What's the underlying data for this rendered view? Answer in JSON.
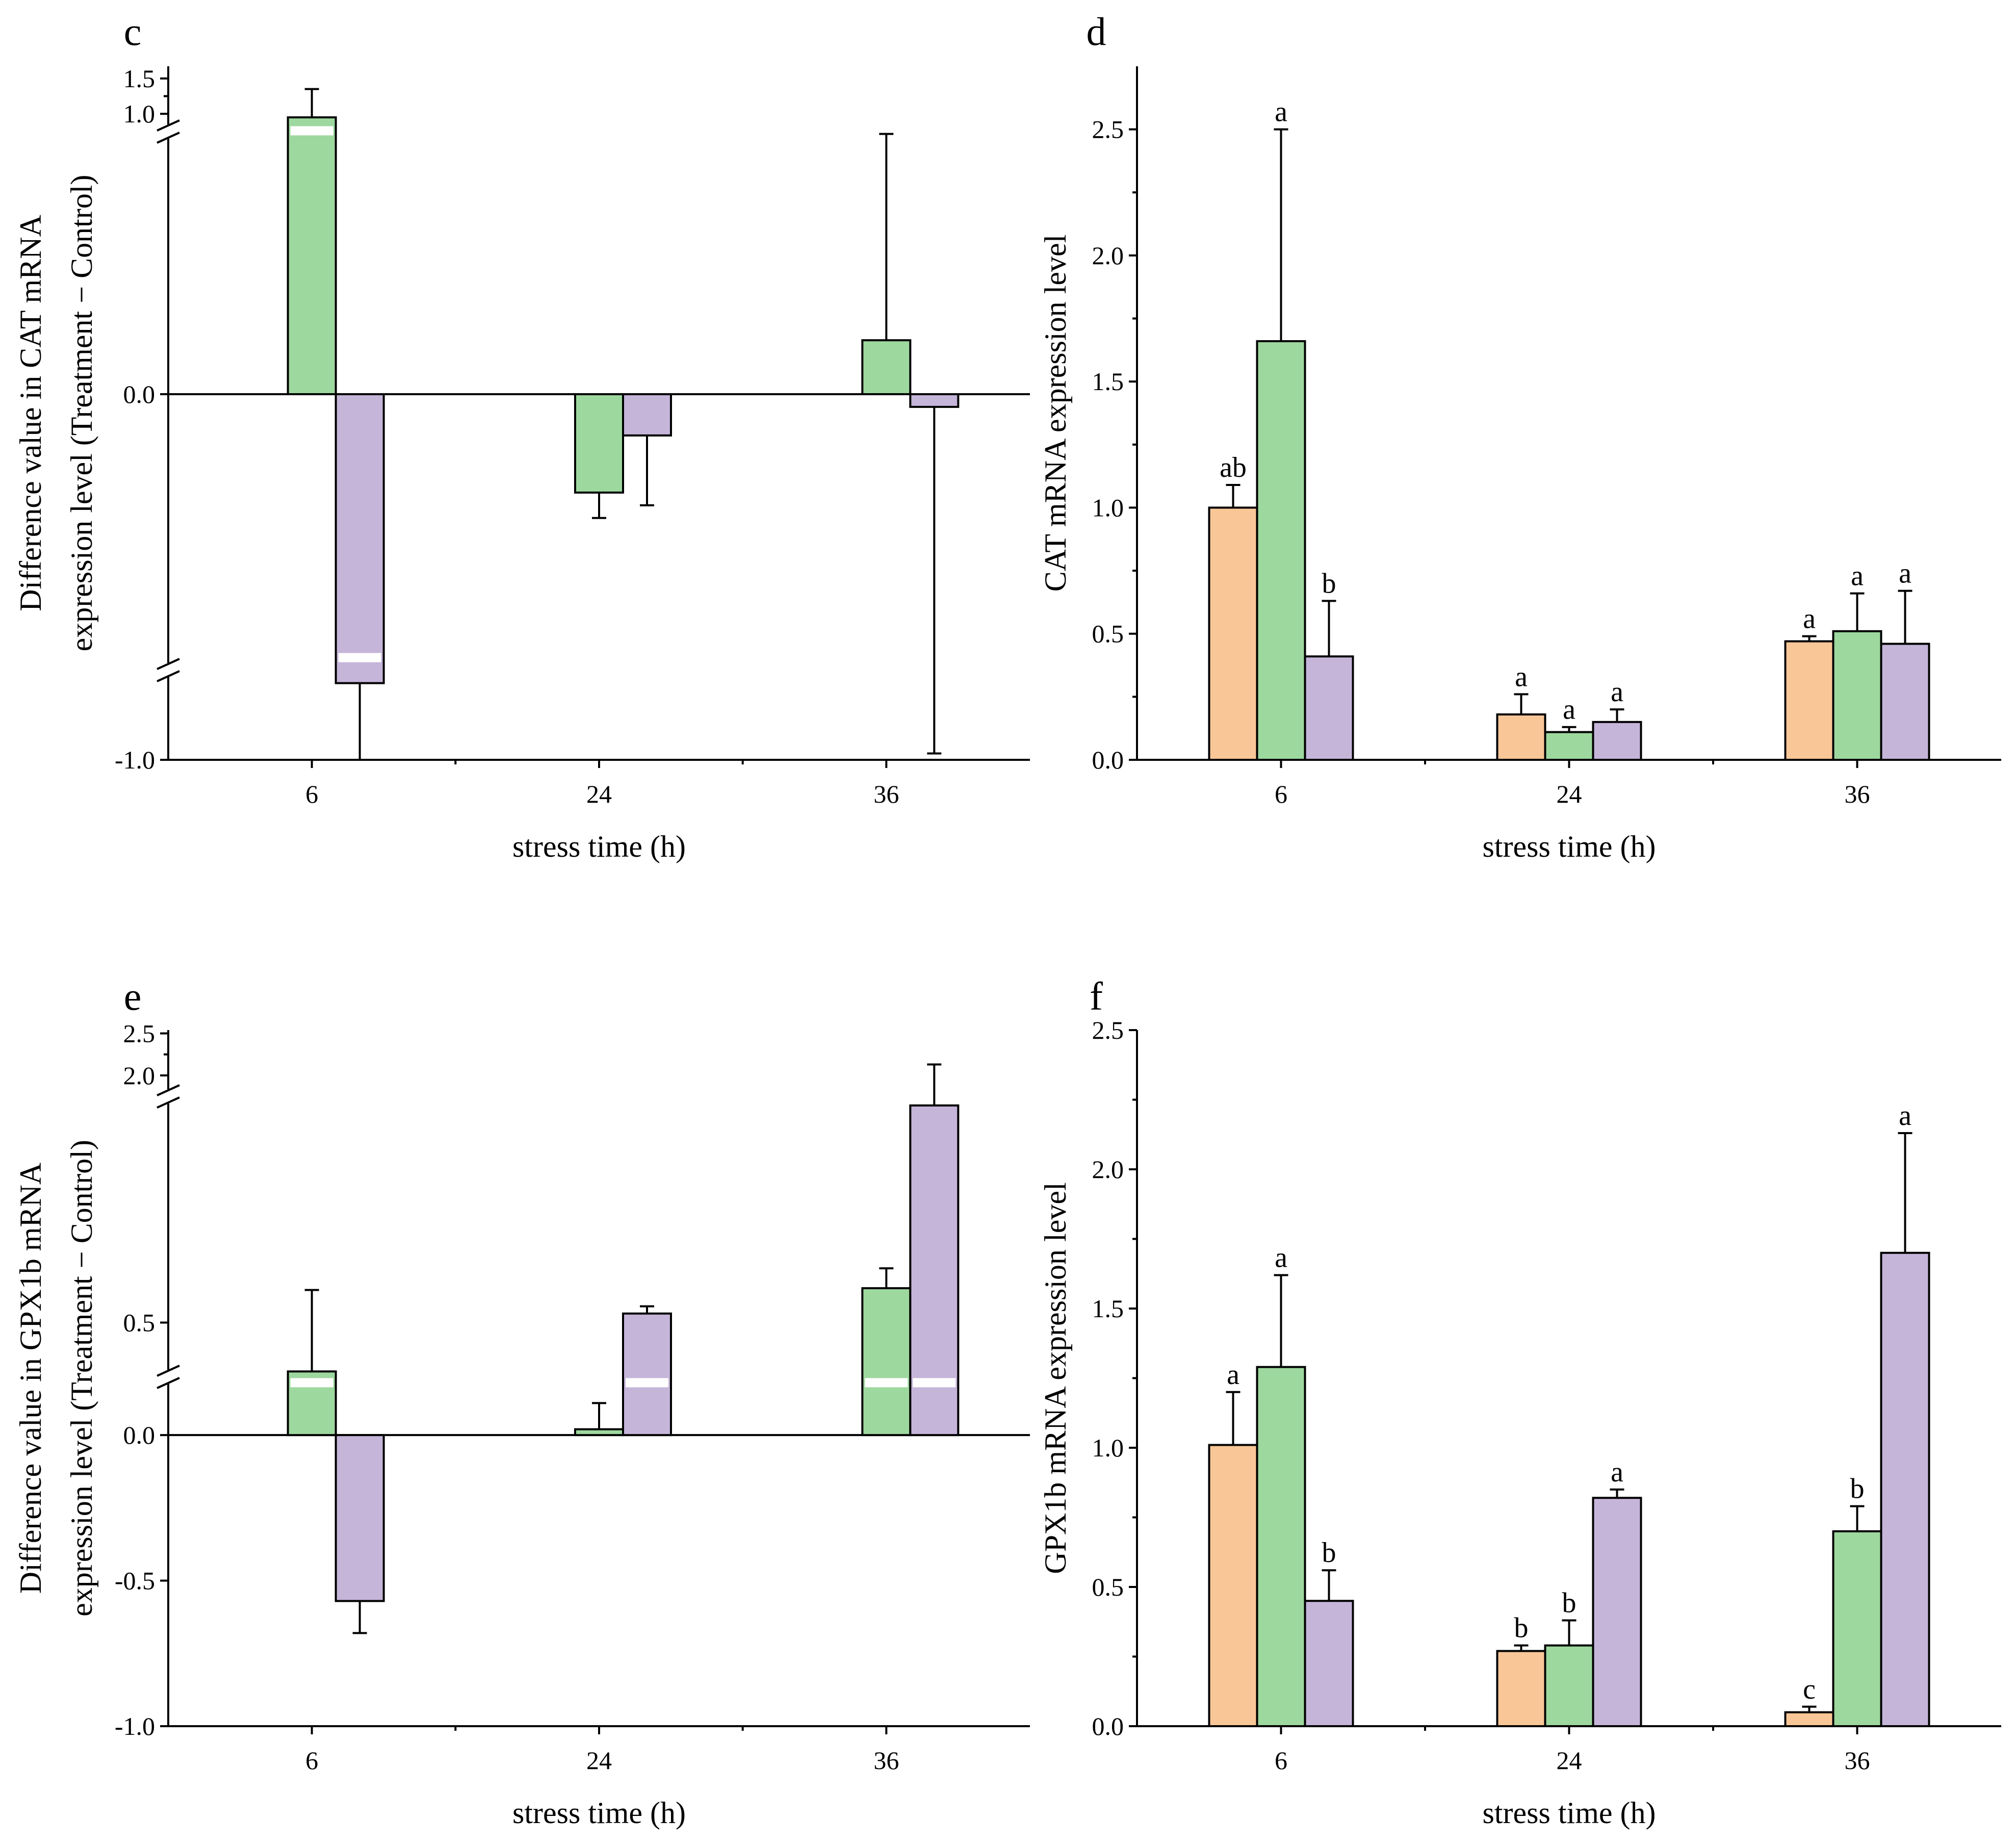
{
  "colors": {
    "orange": "#F9C697",
    "green": "#9DD89E",
    "purple": "#C5B5D9"
  },
  "chart_data": [
    {
      "panel": "c",
      "type": "bar",
      "broken_axis": true,
      "xlabel": "stress time (h)",
      "ylabel_lines": [
        "Difference value in CAT mRNA",
        "expression level (Treatment − Control)"
      ],
      "categories": [
        "6",
        "24",
        "36"
      ],
      "yticks": [
        "1.5",
        "1.0",
        "0.0",
        "-1.0"
      ],
      "series": [
        {
          "name": "green",
          "values": [
            0.95,
            -0.31,
            0.17
          ],
          "errors": [
            0.4,
            0.08,
            0.65
          ]
        },
        {
          "name": "purple",
          "values": [
            -0.88,
            -0.13,
            -0.04
          ],
          "errors": [
            0.15,
            0.22,
            0.95
          ]
        }
      ]
    },
    {
      "panel": "d",
      "type": "bar",
      "xlabel": "stress time (h)",
      "ylabel": "CAT mRNA expression level",
      "categories": [
        "6",
        "24",
        "36"
      ],
      "ylim": [
        0,
        2.75
      ],
      "yticks": [
        "0.0",
        "0.5",
        "1.0",
        "1.5",
        "2.0",
        "2.5"
      ],
      "series": [
        {
          "name": "orange",
          "values": [
            1.0,
            0.18,
            0.47
          ],
          "errors": [
            0.09,
            0.08,
            0.02
          ],
          "letters": [
            "ab",
            "a",
            "a"
          ]
        },
        {
          "name": "green",
          "values": [
            1.66,
            0.11,
            0.51
          ],
          "errors": [
            0.84,
            0.02,
            0.15
          ],
          "letters": [
            "a",
            "a",
            "a"
          ]
        },
        {
          "name": "purple",
          "values": [
            0.41,
            0.15,
            0.46
          ],
          "errors": [
            0.22,
            0.05,
            0.21
          ],
          "letters": [
            "b",
            "a",
            "a"
          ]
        }
      ]
    },
    {
      "panel": "e",
      "type": "bar",
      "broken_axis": true,
      "xlabel": "stress time (h)",
      "ylabel_lines": [
        "Difference value in GPX1b mRNA",
        "expression level (Treatment − Control)"
      ],
      "categories": [
        "6",
        "24",
        "36"
      ],
      "yticks": [
        "2.5",
        "2.0",
        "0.5",
        "0.0",
        "-0.5",
        "-1.0"
      ],
      "series": [
        {
          "name": "green",
          "values": [
            0.23,
            0.02,
            0.69
          ],
          "errors": [
            0.45,
            0.09,
            0.11
          ]
        },
        {
          "name": "purple",
          "values": [
            -0.57,
            0.55,
            1.7
          ],
          "errors": [
            0.11,
            0.04,
            0.43
          ]
        }
      ]
    },
    {
      "panel": "f",
      "type": "bar",
      "xlabel": "stress time (h)",
      "ylabel": "GPX1b mRNA expression level",
      "categories": [
        "6",
        "24",
        "36"
      ],
      "ylim": [
        0,
        2.5
      ],
      "yticks": [
        "0.0",
        "0.5",
        "1.0",
        "1.5",
        "2.0",
        "2.5"
      ],
      "series": [
        {
          "name": "orange",
          "values": [
            1.01,
            0.27,
            0.05
          ],
          "errors": [
            0.19,
            0.02,
            0.02
          ],
          "letters": [
            "a",
            "b",
            "c"
          ]
        },
        {
          "name": "green",
          "values": [
            1.29,
            0.29,
            0.7
          ],
          "errors": [
            0.33,
            0.09,
            0.09
          ],
          "letters": [
            "a",
            "b",
            "b"
          ]
        },
        {
          "name": "purple",
          "values": [
            0.45,
            0.82,
            1.7
          ],
          "errors": [
            0.11,
            0.03,
            0.43
          ],
          "letters": [
            "b",
            "a",
            "a"
          ]
        }
      ]
    }
  ]
}
